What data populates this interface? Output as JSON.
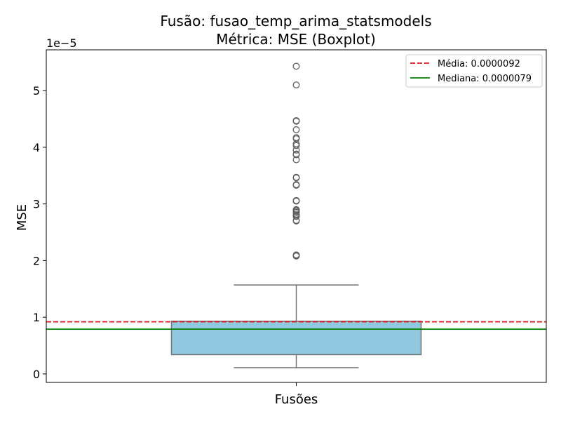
{
  "chart_data": {
    "type": "boxplot",
    "title": "Fusão: fusao_temp_arima_statsmodels",
    "subtitle": "Métrica: MSE (Boxplot)",
    "xlabel": "",
    "ylabel": "MSE",
    "x_tick_labels": [
      "Fusões"
    ],
    "y_tick_labels": [
      "0",
      "1",
      "2",
      "3",
      "4",
      "5"
    ],
    "y_tick_values": [
      0,
      1e-05,
      2e-05,
      3e-05,
      4e-05,
      5e-05
    ],
    "y_offset_text": "1e−5",
    "ylim": [
      -1.5e-06,
      5.72e-05
    ],
    "grid": false,
    "legend_position": "top-right",
    "box": {
      "category": "Fusões",
      "q1": 3.4e-06,
      "median": 7.9e-06,
      "q3": 9.3e-06,
      "whisker_low": 1.1e-06,
      "whisker_high": 1.57e-05,
      "color": "#92c9e0",
      "edge_color": "#707070"
    },
    "outliers": [
      5.43e-05,
      5.1e-05,
      4.47e-05,
      4.46e-05,
      4.31e-05,
      4.17e-05,
      4.15e-05,
      4.06e-05,
      4.03e-05,
      3.95e-05,
      3.88e-05,
      3.87e-05,
      3.78e-05,
      3.47e-05,
      3.46e-05,
      3.34e-05,
      3.33e-05,
      3.06e-05,
      3.05e-05,
      2.9e-05,
      2.89e-05,
      2.87e-05,
      2.85e-05,
      2.82e-05,
      2.8e-05,
      2.78e-05,
      2.71e-05,
      2.7e-05,
      2.1e-05,
      2.09e-05,
      2.08e-05
    ],
    "reference_lines": [
      {
        "name": "Média: 0.0000092",
        "value": 9.2e-06,
        "color": "#e31a1c",
        "style": "dashed"
      },
      {
        "name": "Mediana: 0.0000079",
        "value": 7.9e-06,
        "color": "#008000",
        "style": "solid"
      }
    ]
  }
}
